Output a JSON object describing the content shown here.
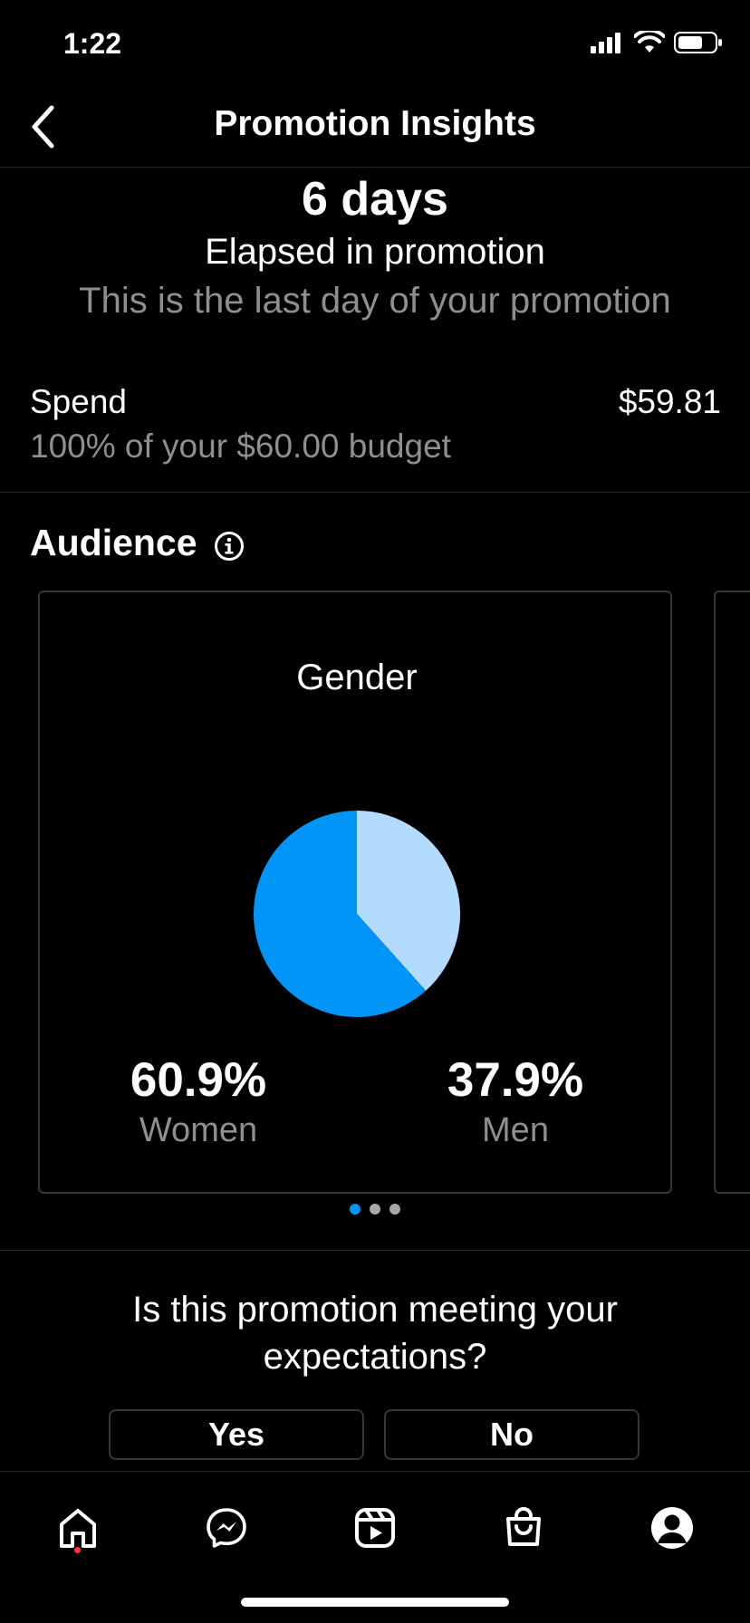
{
  "status_bar": {
    "time": "1:22"
  },
  "header": {
    "title": "Promotion Insights"
  },
  "summary": {
    "days": "6 days",
    "elapsed": "Elapsed in promotion",
    "last_day": "This is the last day of your promotion"
  },
  "spend": {
    "label": "Spend",
    "value": "$59.81",
    "subtext": "100% of your $60.00 budget"
  },
  "audience": {
    "title": "Audience",
    "card": {
      "title": "Gender",
      "women_value": "60.9%",
      "women_label": "Women",
      "men_value": "37.9%",
      "men_label": "Men"
    },
    "pagination": {
      "pages": 3,
      "active": 0
    }
  },
  "chart_data": {
    "type": "pie",
    "title": "Gender",
    "slices": [
      {
        "label": "Women",
        "value": 60.9,
        "color": "#0095f6"
      },
      {
        "label": "Men",
        "value": 37.9,
        "color": "#b3dbff"
      }
    ]
  },
  "feedback": {
    "question": "Is this promotion meeting your expectations?",
    "yes_label": "Yes",
    "no_label": "No"
  },
  "colors": {
    "accent": "#0095f6",
    "accent_light": "#b3dbff",
    "notification": "#ff3040"
  },
  "tabbar": {
    "items": [
      "home-icon",
      "messenger-icon",
      "reels-icon",
      "shop-icon",
      "profile-icon"
    ]
  }
}
